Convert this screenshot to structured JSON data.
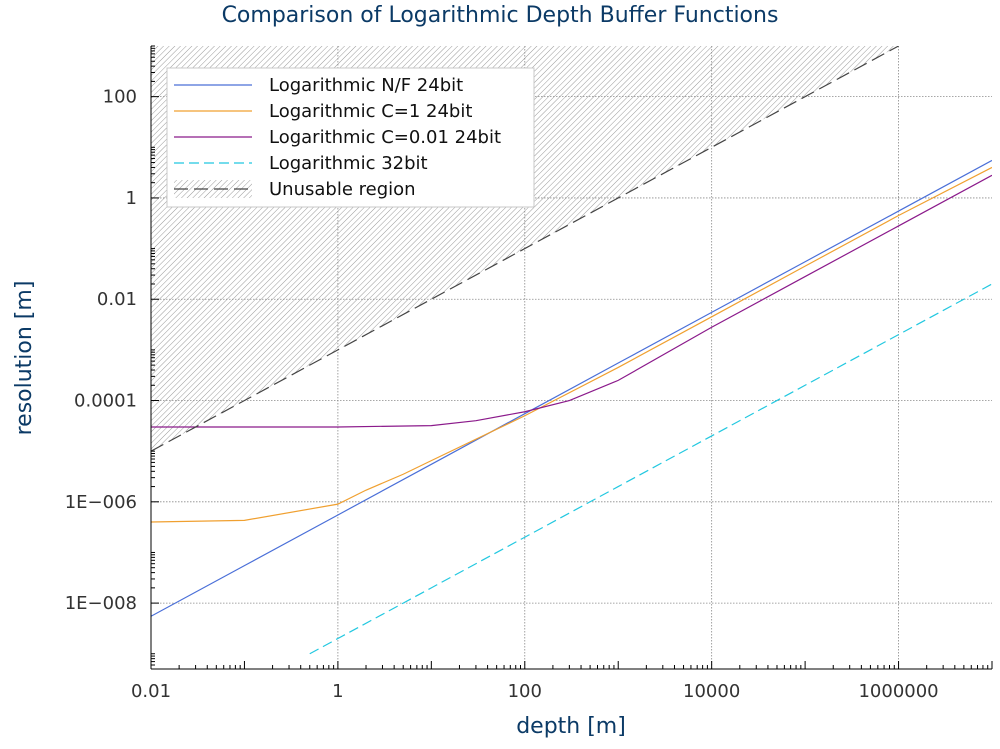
{
  "chart_data": {
    "type": "line",
    "title": "Comparison of Logarithmic Depth Buffer Functions",
    "xlabel": "depth [m]",
    "ylabel": "resolution [m]",
    "x_scale": "log",
    "y_scale": "log",
    "xlim": [
      0.01,
      10000000
    ],
    "ylim": [
      5e-10,
      1000
    ],
    "x_ticks": [
      {
        "value": 0.01,
        "label": "0.01"
      },
      {
        "value": 1,
        "label": "1"
      },
      {
        "value": 100,
        "label": "100"
      },
      {
        "value": 10000,
        "label": "10000"
      },
      {
        "value": 1000000,
        "label": "1000000"
      }
    ],
    "y_ticks": [
      {
        "value": 1e-08,
        "label": "1E−008"
      },
      {
        "value": 1e-06,
        "label": "1E−006"
      },
      {
        "value": 0.0001,
        "label": "0.0001"
      },
      {
        "value": 0.01,
        "label": "0.01"
      },
      {
        "value": 1,
        "label": "1"
      },
      {
        "value": 100,
        "label": "100"
      }
    ],
    "grid": true,
    "legend_position": "top-left",
    "series": [
      {
        "name": "Logarithmic N/F 24bit",
        "color": "#4a6fd8",
        "dash": "solid",
        "x": [
          0.01,
          0.1,
          1,
          10,
          100,
          1000,
          10000,
          100000,
          1000000,
          10000000
        ],
        "y": [
          5.5e-09,
          5.5e-08,
          5.5e-07,
          5.5e-06,
          5.5e-05,
          0.00055,
          0.0055,
          0.055,
          0.55,
          5.5
        ]
      },
      {
        "name": "Logarithmic C=1 24bit",
        "color": "#f0a030",
        "dash": "solid",
        "x": [
          0.01,
          0.1,
          1,
          2,
          5,
          10,
          100,
          1000,
          10000,
          100000,
          1000000,
          10000000
        ],
        "y": [
          4e-07,
          4.3e-07,
          9e-07,
          1.7e-06,
          3.5e-06,
          6.5e-06,
          5e-05,
          0.00045,
          0.0045,
          0.045,
          0.45,
          4
        ]
      },
      {
        "name": "Logarithmic C=0.01 24bit",
        "color": "#8b1a8b",
        "dash": "solid",
        "x": [
          0.01,
          0.1,
          1,
          10,
          30,
          100,
          300,
          1000,
          10000,
          100000,
          1000000,
          10000000
        ],
        "y": [
          3e-05,
          3e-05,
          3e-05,
          3.2e-05,
          4e-05,
          6e-05,
          0.0001,
          0.00025,
          0.0028,
          0.028,
          0.28,
          2.8
        ]
      },
      {
        "name": "Logarithmic 32bit",
        "color": "#22c8e0",
        "dash": "dashed",
        "x": [
          0.5,
          1,
          10,
          100,
          1000,
          10000,
          100000,
          1000000,
          10000000
        ],
        "y": [
          1e-09,
          2e-09,
          2e-08,
          2e-07,
          2e-06,
          2e-05,
          0.0002,
          0.002,
          0.02
        ]
      },
      {
        "name": "Unusable region",
        "color": "#444444",
        "dash": "dashed",
        "x": [
          0.01,
          1,
          100,
          10000,
          1000000
        ],
        "y": [
          1e-05,
          0.001,
          0.1,
          10,
          1000
        ]
      }
    ]
  }
}
